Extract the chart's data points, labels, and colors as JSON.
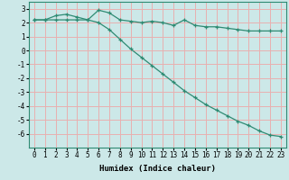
{
  "xlabel": "Humidex (Indice chaleur)",
  "x": [
    0,
    1,
    2,
    3,
    4,
    5,
    6,
    7,
    8,
    9,
    10,
    11,
    12,
    13,
    14,
    15,
    16,
    17,
    18,
    19,
    20,
    21,
    22,
    23
  ],
  "y_upper": [
    2.2,
    2.2,
    2.5,
    2.6,
    2.4,
    2.2,
    2.9,
    2.7,
    2.2,
    2.1,
    2.0,
    2.1,
    2.0,
    1.8,
    2.2,
    1.8,
    1.7,
    1.7,
    1.6,
    1.5,
    1.4,
    1.4,
    1.4,
    1.4
  ],
  "y_lower": [
    2.2,
    2.2,
    2.2,
    2.2,
    2.2,
    2.2,
    2.0,
    1.5,
    0.8,
    0.1,
    -0.5,
    -1.1,
    -1.7,
    -2.3,
    -2.9,
    -3.4,
    -3.9,
    -4.3,
    -4.7,
    -5.1,
    -5.4,
    -5.8,
    -6.1,
    -6.2
  ],
  "line_color": "#2e8b73",
  "bg_color": "#cce8e8",
  "grid_color": "#e8b0b0",
  "ylim": [
    -7,
    3.5
  ],
  "xlim": [
    -0.5,
    23.5
  ],
  "yticks": [
    3,
    2,
    1,
    0,
    -1,
    -2,
    -3,
    -4,
    -5,
    -6
  ],
  "xticks": [
    0,
    1,
    2,
    3,
    4,
    5,
    6,
    7,
    8,
    9,
    10,
    11,
    12,
    13,
    14,
    15,
    16,
    17,
    18,
    19,
    20,
    21,
    22,
    23
  ],
  "label_fontsize": 6.5,
  "tick_fontsize": 5.5
}
